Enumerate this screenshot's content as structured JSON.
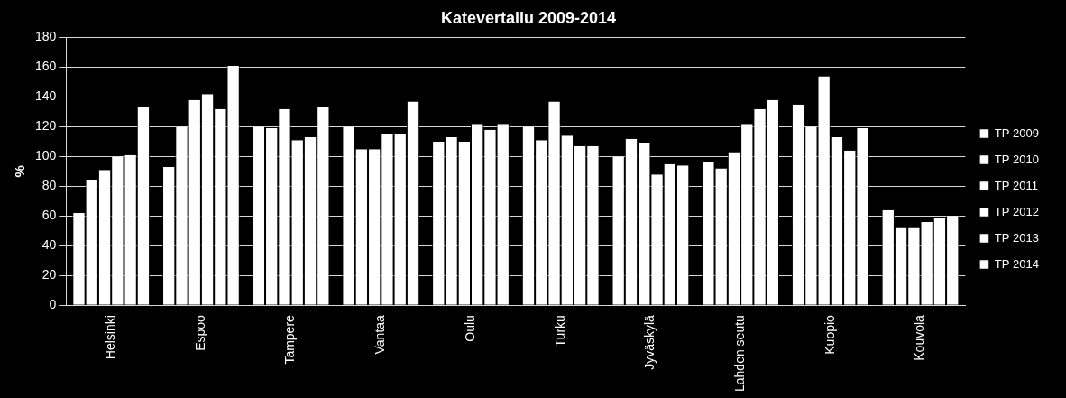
{
  "chart_data": {
    "type": "bar",
    "title": "Katevertailu 2009-2014",
    "y_label": "%",
    "categories": [
      "Helsinki",
      "Espoo",
      "Tampere",
      "Vantaa",
      "Oulu",
      "Turku",
      "Jyväskylä",
      "Lahden seutu",
      "Kuopio",
      "Kouvola"
    ],
    "series": [
      {
        "name": "TP 2009",
        "color": "#ffffff",
        "values": [
          62,
          93,
          120,
          120,
          110,
          120,
          100,
          96,
          135,
          64
        ]
      },
      {
        "name": "TP 2010",
        "color": "#ffffff",
        "values": [
          84,
          120,
          119,
          105,
          113,
          111,
          112,
          92,
          120,
          52
        ]
      },
      {
        "name": "TP 2011",
        "color": "#ffffff",
        "values": [
          91,
          138,
          132,
          105,
          110,
          137,
          109,
          103,
          154,
          52
        ]
      },
      {
        "name": "TP 2012",
        "color": "#ffffff",
        "values": [
          100,
          142,
          111,
          115,
          122,
          114,
          88,
          122,
          113,
          56
        ]
      },
      {
        "name": "TP 2013",
        "color": "#ffffff",
        "values": [
          101,
          132,
          113,
          115,
          118,
          107,
          95,
          132,
          104,
          59
        ]
      },
      {
        "name": "TP 2014",
        "color": "#ffffff",
        "values": [
          133,
          161,
          133,
          137,
          122,
          107,
          94,
          138,
          119,
          60
        ]
      }
    ],
    "ylim": [
      0,
      180
    ],
    "yticks": [
      0,
      20,
      40,
      60,
      80,
      100,
      120,
      140,
      160,
      180
    ],
    "grid": true,
    "legend": "right"
  }
}
